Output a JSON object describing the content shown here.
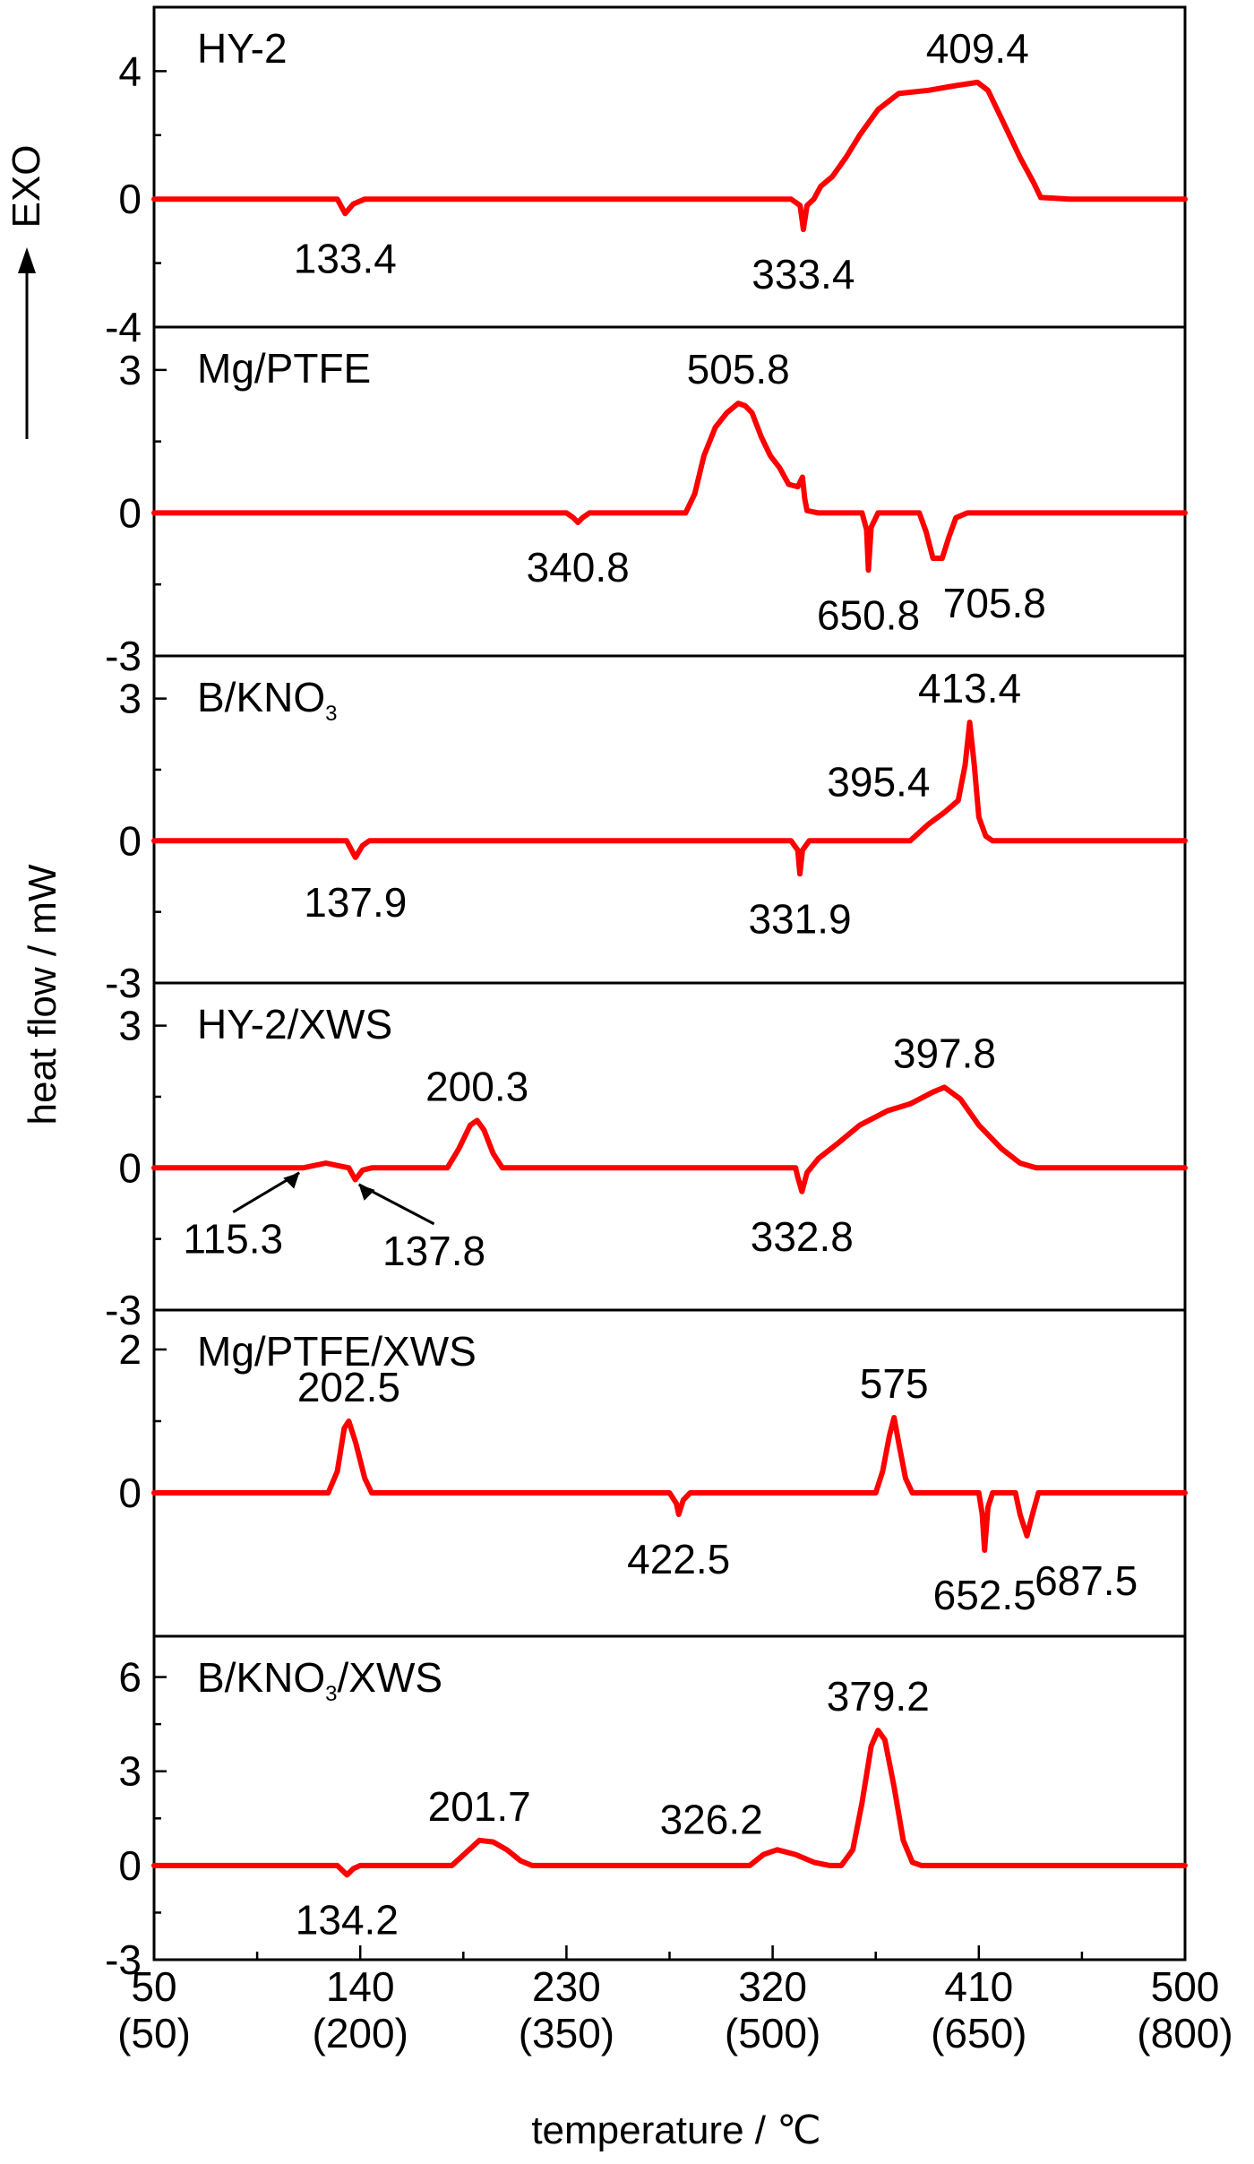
{
  "chart_data": {
    "type": "line",
    "ylabel": "heat flow / mW",
    "xlabel": "temperature / ℃",
    "exo_label": "EXO",
    "x_range": [
      50,
      500
    ],
    "x_ticks": [
      {
        "value": 50,
        "label": "50",
        "sublabel": "(50)"
      },
      {
        "value": 140,
        "label": "140",
        "sublabel": "(200)"
      },
      {
        "value": 230,
        "label": "230",
        "sublabel": "(350)"
      },
      {
        "value": 320,
        "label": "320",
        "sublabel": "(500)"
      },
      {
        "value": 410,
        "label": "410",
        "sublabel": "(650)"
      },
      {
        "value": 500,
        "label": "500",
        "sublabel": "(800)"
      }
    ],
    "line_color": "#ff0000",
    "panels": [
      {
        "name": "HY-2",
        "name_parts": [
          {
            "text": "HY-2"
          }
        ],
        "ylim": [
          -4,
          6
        ],
        "yticks": [
          4,
          0,
          -4
        ],
        "ytick_labels": [
          "4",
          "0",
          "-4"
        ],
        "points": [
          [
            50,
            0
          ],
          [
            130,
            0
          ],
          [
            133.4,
            -0.45
          ],
          [
            137,
            -0.15
          ],
          [
            142,
            0
          ],
          [
            320,
            0
          ],
          [
            328,
            0
          ],
          [
            332,
            -0.2
          ],
          [
            333.4,
            -0.95
          ],
          [
            335,
            -0.2
          ],
          [
            338,
            0
          ],
          [
            341,
            0.4
          ],
          [
            346,
            0.7
          ],
          [
            352,
            1.3
          ],
          [
            358,
            2.0
          ],
          [
            366,
            2.8
          ],
          [
            375,
            3.3
          ],
          [
            388,
            3.4
          ],
          [
            400,
            3.55
          ],
          [
            409.4,
            3.65
          ],
          [
            414,
            3.4
          ],
          [
            420,
            2.5
          ],
          [
            428,
            1.3
          ],
          [
            434,
            0.5
          ],
          [
            437,
            0.05
          ],
          [
            450,
            0
          ],
          [
            500,
            0
          ]
        ],
        "annotations": [
          {
            "label": "409.4",
            "x": 409.4,
            "y": 3.65,
            "pos": "above"
          },
          {
            "label": "133.4",
            "x": 133.4,
            "y": -0.45,
            "pos": "below"
          },
          {
            "label": "333.4",
            "x": 333.4,
            "y": -0.95,
            "pos": "below"
          }
        ]
      },
      {
        "name": "Mg/PTFE",
        "name_parts": [
          {
            "text": "Mg/PTFE"
          }
        ],
        "ylim": [
          -3,
          3.9
        ],
        "yticks": [
          3,
          0,
          -3
        ],
        "ytick_labels": [
          "3",
          "0",
          "-3"
        ],
        "points": [
          [
            50,
            0
          ],
          [
            230,
            0
          ],
          [
            233,
            -0.1
          ],
          [
            235,
            -0.2
          ],
          [
            237,
            -0.1
          ],
          [
            240,
            0
          ],
          [
            282,
            0
          ],
          [
            286,
            0.4
          ],
          [
            290,
            1.2
          ],
          [
            295,
            1.8
          ],
          [
            300,
            2.1
          ],
          [
            305,
            2.3
          ],
          [
            308,
            2.25
          ],
          [
            311,
            2.1
          ],
          [
            315,
            1.6
          ],
          [
            319,
            1.2
          ],
          [
            323,
            0.95
          ],
          [
            327,
            0.6
          ],
          [
            331,
            0.55
          ],
          [
            333,
            0.75
          ],
          [
            334,
            0.3
          ],
          [
            335,
            0.05
          ],
          [
            340,
            0
          ],
          [
            359,
            0
          ],
          [
            361,
            -0.35
          ],
          [
            361.8,
            -1.2
          ],
          [
            363,
            -0.3
          ],
          [
            366,
            0
          ],
          [
            384,
            0
          ],
          [
            387,
            -0.4
          ],
          [
            390,
            -0.95
          ],
          [
            394,
            -0.95
          ],
          [
            397,
            -0.5
          ],
          [
            400,
            -0.1
          ],
          [
            405,
            0
          ],
          [
            500,
            0
          ]
        ],
        "annotations": [
          {
            "label": "505.8",
            "x": 305,
            "y": 2.3,
            "pos": "above"
          },
          {
            "label": "340.8",
            "x": 235,
            "y": -0.2,
            "pos": "below"
          },
          {
            "label": "650.8",
            "x": 361.8,
            "y": -1.2,
            "pos": "below"
          },
          {
            "label": "705.8",
            "x": 392,
            "y": -0.95,
            "pos": "below-right"
          }
        ]
      },
      {
        "name": "B/KNO3",
        "name_parts": [
          {
            "text": "B/KNO"
          },
          {
            "text": "3",
            "sub": true
          }
        ],
        "ylim": [
          -3,
          3.9
        ],
        "yticks": [
          3,
          0,
          -3
        ],
        "ytick_labels": [
          "3",
          "0",
          "-3"
        ],
        "points": [
          [
            50,
            0
          ],
          [
            134,
            0
          ],
          [
            137.9,
            -0.35
          ],
          [
            141,
            -0.1
          ],
          [
            144,
            0
          ],
          [
            328,
            0
          ],
          [
            331,
            -0.2
          ],
          [
            331.9,
            -0.7
          ],
          [
            333,
            -0.2
          ],
          [
            336,
            0
          ],
          [
            380,
            0
          ],
          [
            388,
            0.35
          ],
          [
            395,
            0.6
          ],
          [
            401,
            0.85
          ],
          [
            404,
            1.6
          ],
          [
            406,
            2.5
          ],
          [
            408,
            1.6
          ],
          [
            410,
            0.5
          ],
          [
            413,
            0.1
          ],
          [
            416,
            0
          ],
          [
            500,
            0
          ]
        ],
        "annotations": [
          {
            "label": "413.4",
            "x": 406,
            "y": 2.5,
            "pos": "above"
          },
          {
            "label": "395.4",
            "x": 395,
            "y": 0.6,
            "pos": "above-left"
          },
          {
            "label": "137.9",
            "x": 137.9,
            "y": -0.35,
            "pos": "below"
          },
          {
            "label": "331.9",
            "x": 331.9,
            "y": -0.7,
            "pos": "below"
          }
        ]
      },
      {
        "name": "HY-2/XWS",
        "name_parts": [
          {
            "text": "HY-2/XWS"
          }
        ],
        "ylim": [
          -3,
          3.9
        ],
        "yticks": [
          3,
          0,
          -3
        ],
        "ytick_labels": [
          "3",
          "0",
          "-3"
        ],
        "points": [
          [
            50,
            0
          ],
          [
            115,
            0
          ],
          [
            125,
            0.1
          ],
          [
            130,
            0.05
          ],
          [
            135,
            0
          ],
          [
            137.8,
            -0.25
          ],
          [
            141,
            -0.05
          ],
          [
            145,
            0
          ],
          [
            178,
            0
          ],
          [
            183,
            0.4
          ],
          [
            188,
            0.9
          ],
          [
            191,
            1.0
          ],
          [
            194,
            0.8
          ],
          [
            198,
            0.3
          ],
          [
            202,
            0
          ],
          [
            330,
            0
          ],
          [
            331,
            -0.2
          ],
          [
            332.8,
            -0.5
          ],
          [
            335,
            -0.1
          ],
          [
            340,
            0.2
          ],
          [
            348,
            0.5
          ],
          [
            358,
            0.9
          ],
          [
            370,
            1.2
          ],
          [
            380,
            1.35
          ],
          [
            390,
            1.6
          ],
          [
            395,
            1.7
          ],
          [
            402,
            1.45
          ],
          [
            410,
            0.9
          ],
          [
            420,
            0.4
          ],
          [
            428,
            0.1
          ],
          [
            435,
            0
          ],
          [
            500,
            0
          ]
        ],
        "annotations": [
          {
            "label": "200.3",
            "x": 191,
            "y": 1.0,
            "pos": "above"
          },
          {
            "label": "397.8",
            "x": 395,
            "y": 1.7,
            "pos": "above"
          },
          {
            "label": "332.8",
            "x": 332.8,
            "y": -0.5,
            "pos": "below"
          }
        ],
        "arrow_annotations": [
          {
            "label": "115.3",
            "x": 115,
            "y": 0.05
          },
          {
            "label": "137.8",
            "x": 137.8,
            "y": -0.2
          }
        ]
      },
      {
        "name": "Mg/PTFE/XWS",
        "name_parts": [
          {
            "text": "Mg/PTFE/XWS"
          }
        ],
        "ylim": [
          -2,
          2.55
        ],
        "yticks": [
          2,
          0
        ],
        "ytick_labels": [
          "2",
          "0"
        ],
        "points": [
          [
            50,
            0
          ],
          [
            126,
            0
          ],
          [
            130,
            0.3
          ],
          [
            133,
            0.9
          ],
          [
            135,
            1.0
          ],
          [
            138,
            0.7
          ],
          [
            142,
            0.2
          ],
          [
            145,
            0
          ],
          [
            275,
            0
          ],
          [
            278,
            -0.15
          ],
          [
            279,
            -0.3
          ],
          [
            281,
            -0.1
          ],
          [
            284,
            0
          ],
          [
            365,
            0
          ],
          [
            368,
            0.3
          ],
          [
            371,
            0.8
          ],
          [
            373,
            1.05
          ],
          [
            375,
            0.7
          ],
          [
            378,
            0.2
          ],
          [
            381,
            0
          ],
          [
            410,
            0
          ],
          [
            411.5,
            -0.3
          ],
          [
            412.5,
            -0.8
          ],
          [
            414,
            -0.2
          ],
          [
            416,
            0
          ],
          [
            426,
            0
          ],
          [
            428,
            -0.3
          ],
          [
            431,
            -0.6
          ],
          [
            433,
            -0.35
          ],
          [
            436,
            0
          ],
          [
            500,
            0
          ]
        ],
        "annotations": [
          {
            "label": "202.5",
            "x": 135,
            "y": 1.0,
            "pos": "above"
          },
          {
            "label": "575",
            "x": 373,
            "y": 1.05,
            "pos": "above"
          },
          {
            "label": "422.5",
            "x": 279,
            "y": -0.3,
            "pos": "below"
          },
          {
            "label": "652.5",
            "x": 412.5,
            "y": -0.8,
            "pos": "below"
          },
          {
            "label": "687.5",
            "x": 432,
            "y": -0.6,
            "pos": "below-right"
          }
        ]
      },
      {
        "name": "B/KNO3/XWS",
        "name_parts": [
          {
            "text": "B/KNO"
          },
          {
            "text": "3",
            "sub": true
          },
          {
            "text": "/XWS"
          }
        ],
        "ylim": [
          -3,
          7.3
        ],
        "yticks": [
          6,
          3,
          0,
          -3
        ],
        "ytick_labels": [
          "6",
          "3",
          "0",
          "-3"
        ],
        "points": [
          [
            50,
            0
          ],
          [
            130,
            0
          ],
          [
            134.2,
            -0.3
          ],
          [
            137,
            -0.1
          ],
          [
            140,
            0
          ],
          [
            180,
            0
          ],
          [
            186,
            0.4
          ],
          [
            192,
            0.8
          ],
          [
            198,
            0.75
          ],
          [
            204,
            0.5
          ],
          [
            210,
            0.15
          ],
          [
            215,
            0
          ],
          [
            310,
            0
          ],
          [
            316,
            0.35
          ],
          [
            322,
            0.5
          ],
          [
            330,
            0.35
          ],
          [
            338,
            0.1
          ],
          [
            345,
            0
          ],
          [
            350,
            0
          ],
          [
            355,
            0.5
          ],
          [
            359,
            2.0
          ],
          [
            363,
            3.8
          ],
          [
            366,
            4.3
          ],
          [
            369,
            4.0
          ],
          [
            373,
            2.5
          ],
          [
            377,
            0.8
          ],
          [
            381,
            0.1
          ],
          [
            385,
            0
          ],
          [
            500,
            0
          ]
        ],
        "annotations": [
          {
            "label": "379.2",
            "x": 366,
            "y": 4.3,
            "pos": "above"
          },
          {
            "label": "201.7",
            "x": 192,
            "y": 0.8,
            "pos": "above"
          },
          {
            "label": "326.2",
            "x": 322,
            "y": 0.5,
            "pos": "above-left"
          },
          {
            "label": "134.2",
            "x": 134.2,
            "y": -0.3,
            "pos": "below"
          }
        ]
      }
    ]
  }
}
